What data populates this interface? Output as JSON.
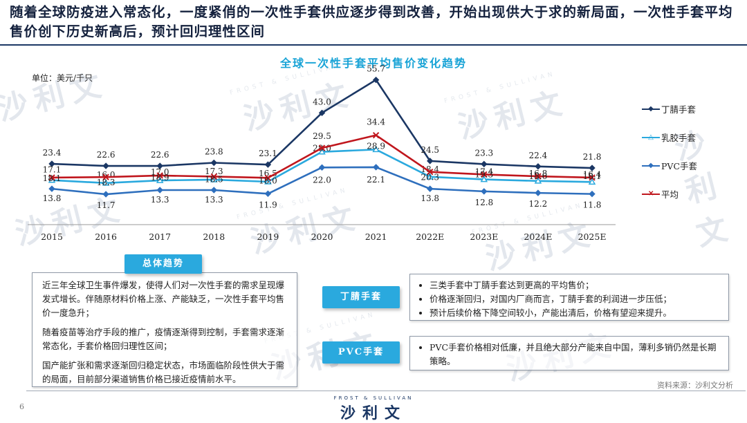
{
  "headline": "随着全球防疫进入常态化，一度紧俏的一次性手套供应逐步得到改善，开始出现供大于求的新局面，一次性手套平均售价创下历史新高后，预计回归理性区间",
  "unit_label": "单位：美元/千只",
  "watermark_text": "沙利文",
  "watermark_small": "FROST & SULLIVAN",
  "chart_data": {
    "type": "line",
    "title": "全球一次性手套平均售价变化趋势",
    "categories": [
      "2015",
      "2016",
      "2017",
      "2018",
      "2019",
      "2020",
      "2021",
      "2022E",
      "2023E",
      "2024E",
      "2025E"
    ],
    "ylim": [
      0,
      60
    ],
    "grid": false,
    "legend_position": "right",
    "series": [
      {
        "name": "丁腈手套",
        "color": "#1b3764",
        "marker": "diamond",
        "values": [
          23.4,
          22.6,
          22.6,
          23.8,
          23.1,
          43.0,
          55.7,
          24.5,
          23.3,
          22.4,
          21.8
        ],
        "labels": [
          "23.4",
          "22.6",
          "22.6",
          "23.8",
          "23.1",
          "43.0",
          "55.7",
          "24.5",
          "23.3",
          "22.4",
          "21.8"
        ]
      },
      {
        "name": "乳胶手套",
        "color": "#2aa9de",
        "marker": "triangle",
        "values": [
          17.1,
          16.0,
          17.0,
          17.3,
          16.5,
          28.0,
          28.9,
          18.4,
          17.4,
          16.8,
          16.4
        ],
        "labels": [
          "17.1",
          "16.0",
          "17.0",
          "17.3",
          "16.5",
          "28.0",
          "28.9",
          "18.4",
          "17.4",
          "16.8",
          "16.4"
        ]
      },
      {
        "name": "PVC手套",
        "color": "#2e6fbd",
        "marker": "diamond",
        "values": [
          13.8,
          11.7,
          13.3,
          13.3,
          11.9,
          22.0,
          22.1,
          13.8,
          12.8,
          12.2,
          11.8
        ],
        "labels": [
          "13.8",
          "11.7",
          "13.3",
          "13.3",
          "11.9",
          "22.0",
          "22.1",
          "13.8",
          "12.8",
          "12.2",
          "11.8"
        ]
      },
      {
        "name": "平均",
        "color": "#c0161d",
        "marker": "x",
        "values": [
          18.1,
          18.3,
          18.9,
          18.5,
          18.0,
          29.5,
          34.4,
          20.3,
          19.3,
          18.6,
          18.1
        ],
        "labels": [
          "18.1",
          "18.3",
          "18.9",
          "18.5",
          "18.0",
          "29.5",
          "34.4",
          "20.3",
          "19.3",
          "18.6",
          "18.1"
        ]
      }
    ]
  },
  "summary": {
    "title": "总体趋势",
    "paragraphs": [
      "近三年全球卫生事件爆发，使得人们对一次性手套的需求呈现爆发式增长。伴随原材料价格上涨、产能缺乏，一次性手套平均售价一度急升；",
      "随着疫苗等治疗手段的推广，疫情逐渐得到控制，手套需求逐渐常态化，手套价格回归理性区间；",
      "国产能扩张和需求逐渐回归稳定状态，市场面临阶段性供大于需的局面，目前部分渠道销售价格已接近疫情前水平。"
    ]
  },
  "nitrile_box": {
    "title": "丁腈手套",
    "bullets": [
      "三类手套中丁腈手套达到更高的平均售价；",
      "价格逐渐回归，对国内厂商而言，丁腈手套的利润进一步压低；",
      "预计后续价格下降空间较小，产能出清后，价格有望迎来提升。"
    ]
  },
  "pvc_box": {
    "title": "PVC手套",
    "bullets": [
      "PVC手套价格相对低廉，并且绝大部分产能来自中国，薄利多销仍然是长期策略。"
    ]
  },
  "source": "资料来源：沙利文分析",
  "page_number": "6",
  "logo_top": "FROST & SULLIVAN",
  "logo_main": "沙利文"
}
